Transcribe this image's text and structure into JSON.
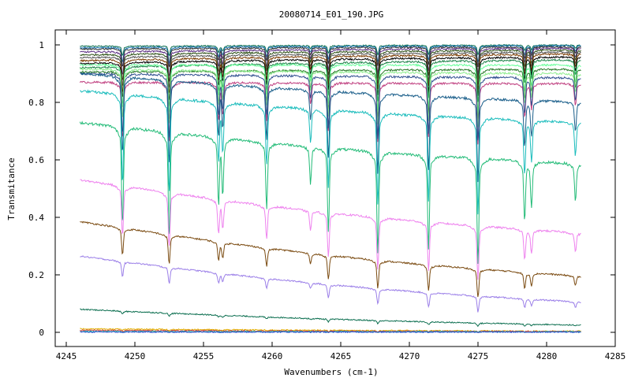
{
  "chart_data": {
    "type": "line",
    "title": "20080714_E01_190.JPG",
    "xlabel": "Wavenumbers (cm-1)",
    "ylabel": "Transmitance",
    "xlim": [
      4245,
      4285
    ],
    "ylim": [
      0,
      1
    ],
    "x_ticks": [
      "4245",
      "4250",
      "4255",
      "4260",
      "4265",
      "4270",
      "4275",
      "4280",
      "4285"
    ],
    "y_ticks": [
      "0",
      "0.2",
      "0.4",
      "0.6",
      "0.8",
      "1"
    ],
    "grid": false,
    "x_range_data": [
      4246,
      4282.5
    ],
    "absorption_lines": [
      {
        "x": 4249.1,
        "depth": 0.93
      },
      {
        "x": 4252.5,
        "depth": 1.0
      },
      {
        "x": 4256.1,
        "depth": 0.6
      },
      {
        "x": 4256.4,
        "depth": 0.5
      },
      {
        "x": 4259.6,
        "depth": 0.62
      },
      {
        "x": 4262.8,
        "depth": 0.35
      },
      {
        "x": 4264.1,
        "depth": 0.8
      },
      {
        "x": 4267.7,
        "depth": 0.96
      },
      {
        "x": 4271.4,
        "depth": 0.88
      },
      {
        "x": 4275.0,
        "depth": 1.0
      },
      {
        "x": 4278.4,
        "depth": 0.55
      },
      {
        "x": 4278.9,
        "depth": 0.42
      },
      {
        "x": 4282.1,
        "depth": 0.35
      }
    ],
    "series": [
      {
        "color": "#0b6e4f",
        "baseline_start": 0.995,
        "baseline_end": 0.999,
        "dip_scale": 0.03
      },
      {
        "color": "#1f77b4",
        "baseline_start": 0.99,
        "baseline_end": 0.997,
        "dip_scale": 0.05
      },
      {
        "color": "#333333",
        "baseline_start": 0.985,
        "baseline_end": 0.993,
        "dip_scale": 0.06
      },
      {
        "color": "#5a2d82",
        "baseline_start": 0.975,
        "baseline_end": 0.988,
        "dip_scale": 0.08
      },
      {
        "color": "#2d5016",
        "baseline_start": 0.965,
        "baseline_end": 0.982,
        "dip_scale": 0.09
      },
      {
        "color": "#555555",
        "baseline_start": 0.955,
        "baseline_end": 0.975,
        "dip_scale": 0.1
      },
      {
        "color": "#7a3b00",
        "baseline_start": 0.945,
        "baseline_end": 0.968,
        "dip_scale": 0.11
      },
      {
        "color": "#000000",
        "baseline_start": 0.935,
        "baseline_end": 0.958,
        "dip_scale": 0.12
      },
      {
        "color": "#1e8449",
        "baseline_start": 0.92,
        "baseline_end": 0.948,
        "dip_scale": 0.13
      },
      {
        "color": "#66ff99",
        "baseline_start": 0.93,
        "baseline_end": 0.93,
        "dip_scale": 0.15
      },
      {
        "color": "#2a7a2a",
        "baseline_start": 0.905,
        "baseline_end": 0.915,
        "dip_scale": 0.16
      },
      {
        "color": "#90ee90",
        "baseline_start": 0.915,
        "baseline_end": 0.9,
        "dip_scale": 0.17
      },
      {
        "color": "#c04080",
        "baseline_start": 0.87,
        "baseline_end": 0.865,
        "dip_scale": 0.19
      },
      {
        "color": "#2f4f8f",
        "baseline_start": 0.9,
        "baseline_end": 0.885,
        "dip_scale": 0.2
      },
      {
        "color": "#1a5e8a",
        "baseline_start": 0.9,
        "baseline_end": 0.8,
        "dip_scale": 0.26
      },
      {
        "color": "#1abcbc",
        "baseline_start": 0.84,
        "baseline_end": 0.73,
        "dip_scale": 0.3
      },
      {
        "color": "#22bb77",
        "baseline_start": 0.73,
        "baseline_end": 0.585,
        "dip_scale": 0.33
      },
      {
        "color": "#ee82ee",
        "baseline_start": 0.53,
        "baseline_end": 0.345,
        "dip_scale": 0.17
      },
      {
        "color": "#7a4a10",
        "baseline_start": 0.385,
        "baseline_end": 0.195,
        "dip_scale": 0.09
      },
      {
        "color": "#9b7fe8",
        "baseline_start": 0.265,
        "baseline_end": 0.105,
        "dip_scale": 0.05
      },
      {
        "color": "#0b6e4f",
        "baseline_start": 0.08,
        "baseline_end": 0.025,
        "dip_scale": 0.01
      },
      {
        "color": "#e0b000",
        "baseline_start": 0.012,
        "baseline_end": 0.004,
        "dip_scale": 0.004
      },
      {
        "color": "#d04040",
        "baseline_start": 0.007,
        "baseline_end": 0.003,
        "dip_scale": 0.003
      },
      {
        "color": "#20b2aa",
        "baseline_start": 0.003,
        "baseline_end": 0.002,
        "dip_scale": 0.002
      },
      {
        "color": "#3050d0",
        "baseline_start": 0.001,
        "baseline_end": 0.001,
        "dip_scale": 0.001
      }
    ]
  }
}
